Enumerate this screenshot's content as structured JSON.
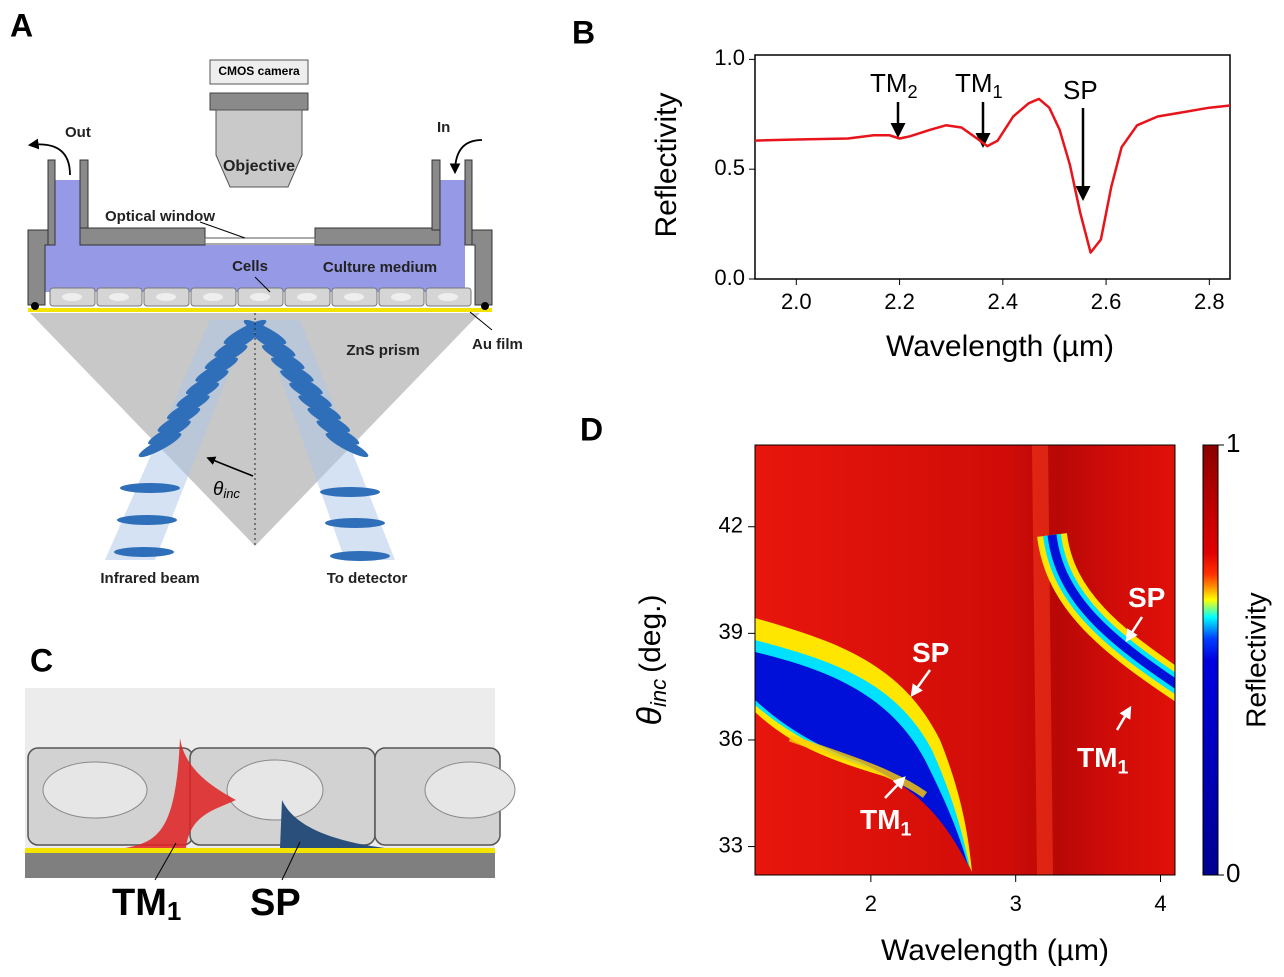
{
  "panel_labels": [
    "A",
    "B",
    "C",
    "D"
  ],
  "diagram_a": {
    "camera": "CMOS camera",
    "objective": "Objective",
    "out": "Out",
    "in": "In",
    "optical_window": "Optical window",
    "cells": "Cells",
    "culture_medium": "Culture medium",
    "prism": "ZnS prism",
    "au_film": "Au film",
    "angle": {
      "symbol": "θ",
      "sub": "inc"
    },
    "infrared_beam": "Infrared beam",
    "to_detector": "To detector"
  },
  "diagram_c": {
    "tm1": {
      "text": "TM",
      "sub": "1"
    },
    "sp": "SP"
  },
  "chart_data": [
    {
      "type": "line",
      "xlabel": "Wavelength (µm)",
      "ylabel": "Reflectivity",
      "color": "#e8141b",
      "x": [
        1.92,
        2.0,
        2.1,
        2.15,
        2.18,
        2.2,
        2.22,
        2.26,
        2.29,
        2.32,
        2.35,
        2.37,
        2.39,
        2.42,
        2.45,
        2.47,
        2.49,
        2.51,
        2.53,
        2.55,
        2.57,
        2.59,
        2.61,
        2.63,
        2.66,
        2.7,
        2.75,
        2.8,
        2.84
      ],
      "values": [
        0.63,
        0.635,
        0.64,
        0.655,
        0.655,
        0.64,
        0.65,
        0.68,
        0.7,
        0.69,
        0.64,
        0.605,
        0.63,
        0.74,
        0.8,
        0.82,
        0.78,
        0.68,
        0.52,
        0.3,
        0.12,
        0.18,
        0.42,
        0.6,
        0.7,
        0.74,
        0.76,
        0.78,
        0.79
      ],
      "xlim": [
        1.92,
        2.84
      ],
      "ylim": [
        0,
        1.02
      ],
      "xticks": [
        {
          "value": 2.0,
          "label": "2.0"
        },
        {
          "value": 2.2,
          "label": "2.2"
        },
        {
          "value": 2.4,
          "label": "2.4"
        },
        {
          "value": 2.6,
          "label": "2.6"
        },
        {
          "value": 2.8,
          "label": "2.8"
        }
      ],
      "yticks": [
        {
          "value": 0,
          "label": "0.0"
        },
        {
          "value": 0.5,
          "label": "0.5"
        },
        {
          "value": 1,
          "label": "1.0"
        }
      ],
      "annotations": [
        {
          "text": "TM",
          "sub": "2"
        },
        {
          "text": "TM",
          "sub": "1"
        },
        {
          "text": "SP"
        }
      ]
    },
    {
      "type": "heatmap",
      "xlabel": "Wavelength (µm)",
      "ylabel": {
        "symbol": "θ",
        "sub": "inc",
        "unit": "(deg.)"
      },
      "xlim": [
        1.2,
        4.1
      ],
      "ylim": [
        32.2,
        44.3
      ],
      "xticks": [
        2,
        3,
        4
      ],
      "yticks": [
        33,
        36,
        39,
        42
      ],
      "colorbar_label": "Reflectivity",
      "clim": [
        0,
        1
      ],
      "cticks": [
        0,
        1
      ],
      "annotations": [
        {
          "text": "SP"
        },
        {
          "text": "TM",
          "sub": "1"
        },
        {
          "text": "SP"
        },
        {
          "text": "TM",
          "sub": "1"
        }
      ]
    }
  ]
}
